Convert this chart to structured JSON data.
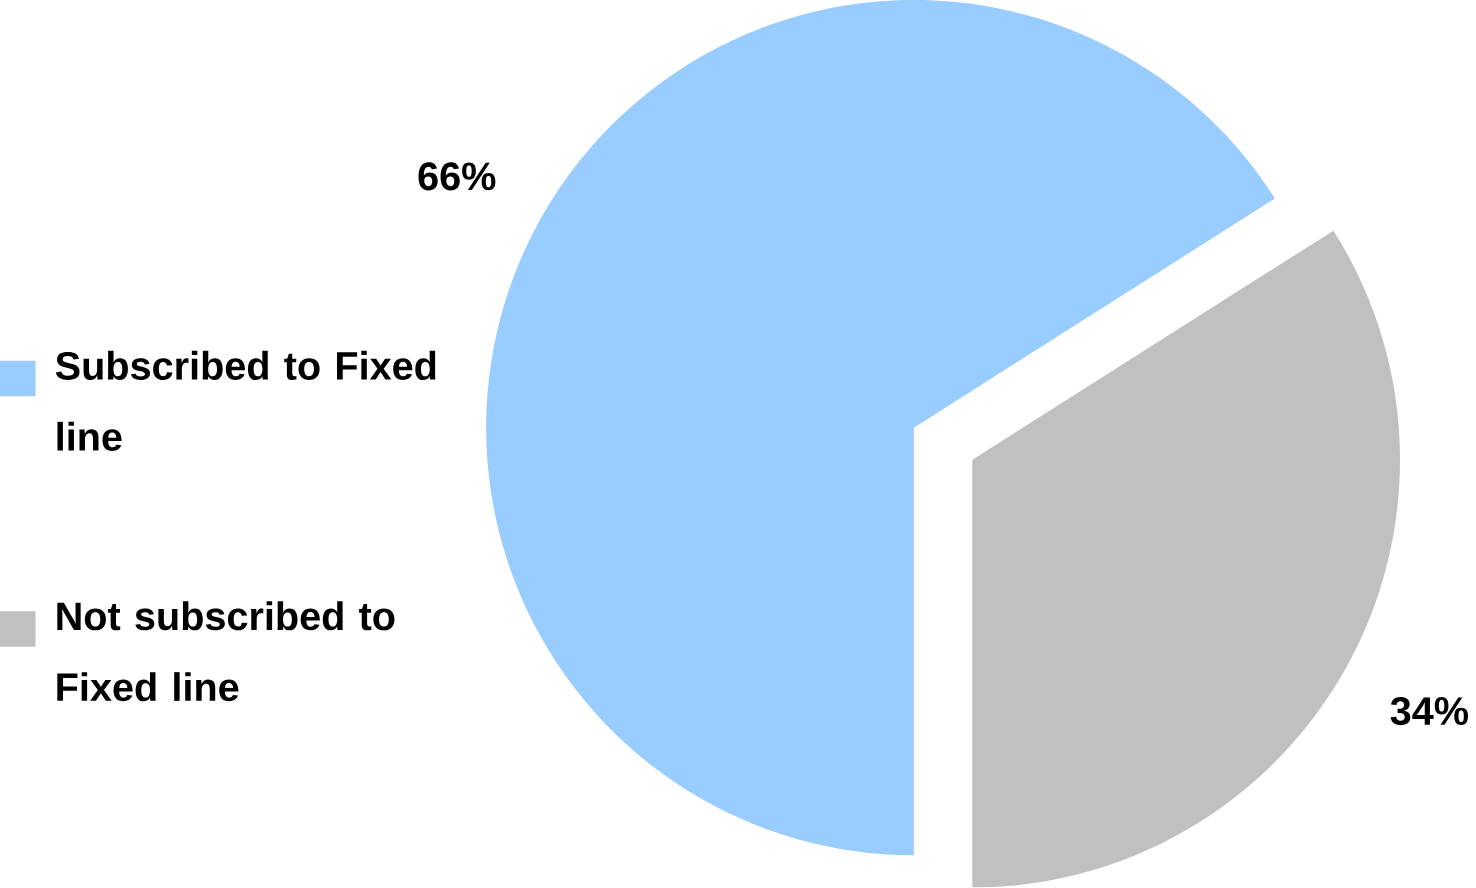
{
  "chart_data": {
    "type": "pie",
    "categories": [
      "Subscribed to Fixed line",
      "Not subscribed to Fixed line"
    ],
    "values": [
      66,
      34
    ],
    "colors": [
      "#99ccff",
      "#c0c0c0"
    ],
    "value_labels": [
      "66%",
      "34%"
    ],
    "legend": "left"
  }
}
